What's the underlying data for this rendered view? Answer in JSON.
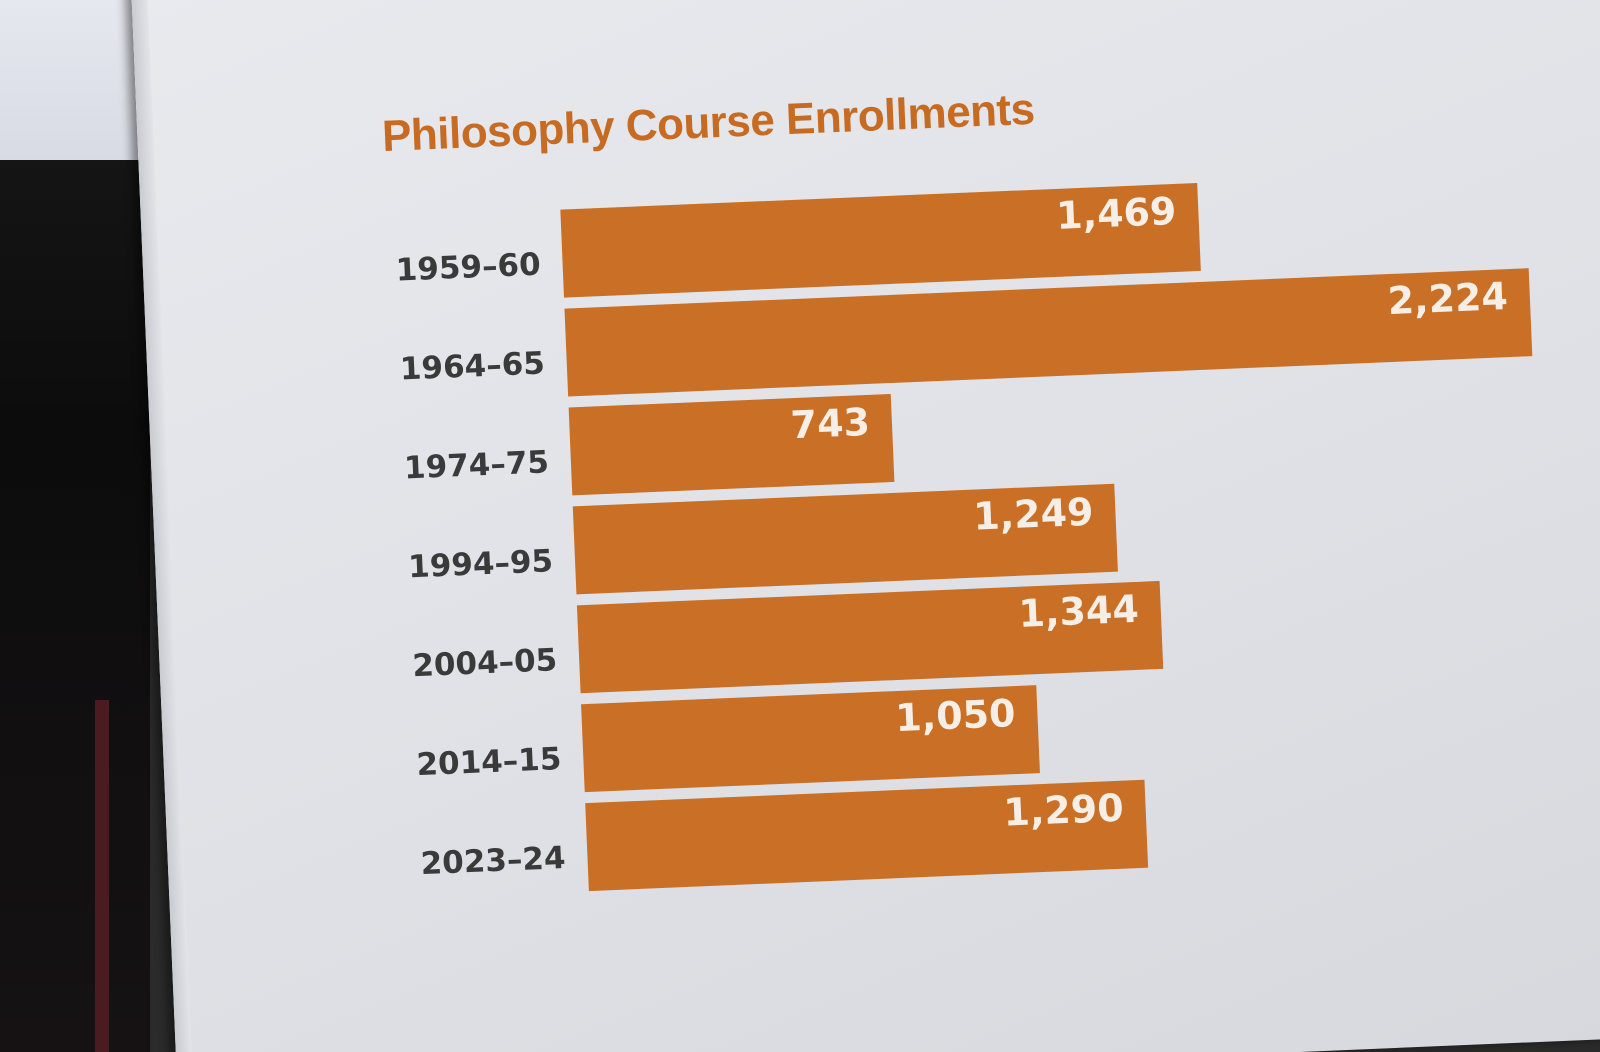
{
  "chart_data": {
    "type": "bar",
    "orientation": "horizontal",
    "title": "Philosophy Course Enrollments",
    "categories": [
      "1959–60",
      "1964–65",
      "1974–75",
      "1994–95",
      "2004–05",
      "2014–15",
      "2023–24"
    ],
    "values": [
      1469,
      2224,
      743,
      1249,
      1344,
      1050,
      1290
    ],
    "value_labels": [
      "1,469",
      "2,224",
      "743",
      "1,249",
      "1,344",
      "1,050",
      "1,290"
    ],
    "bar_color": "#c96f26",
    "xlim": [
      0,
      2224
    ],
    "grid": false,
    "legend": "none"
  }
}
